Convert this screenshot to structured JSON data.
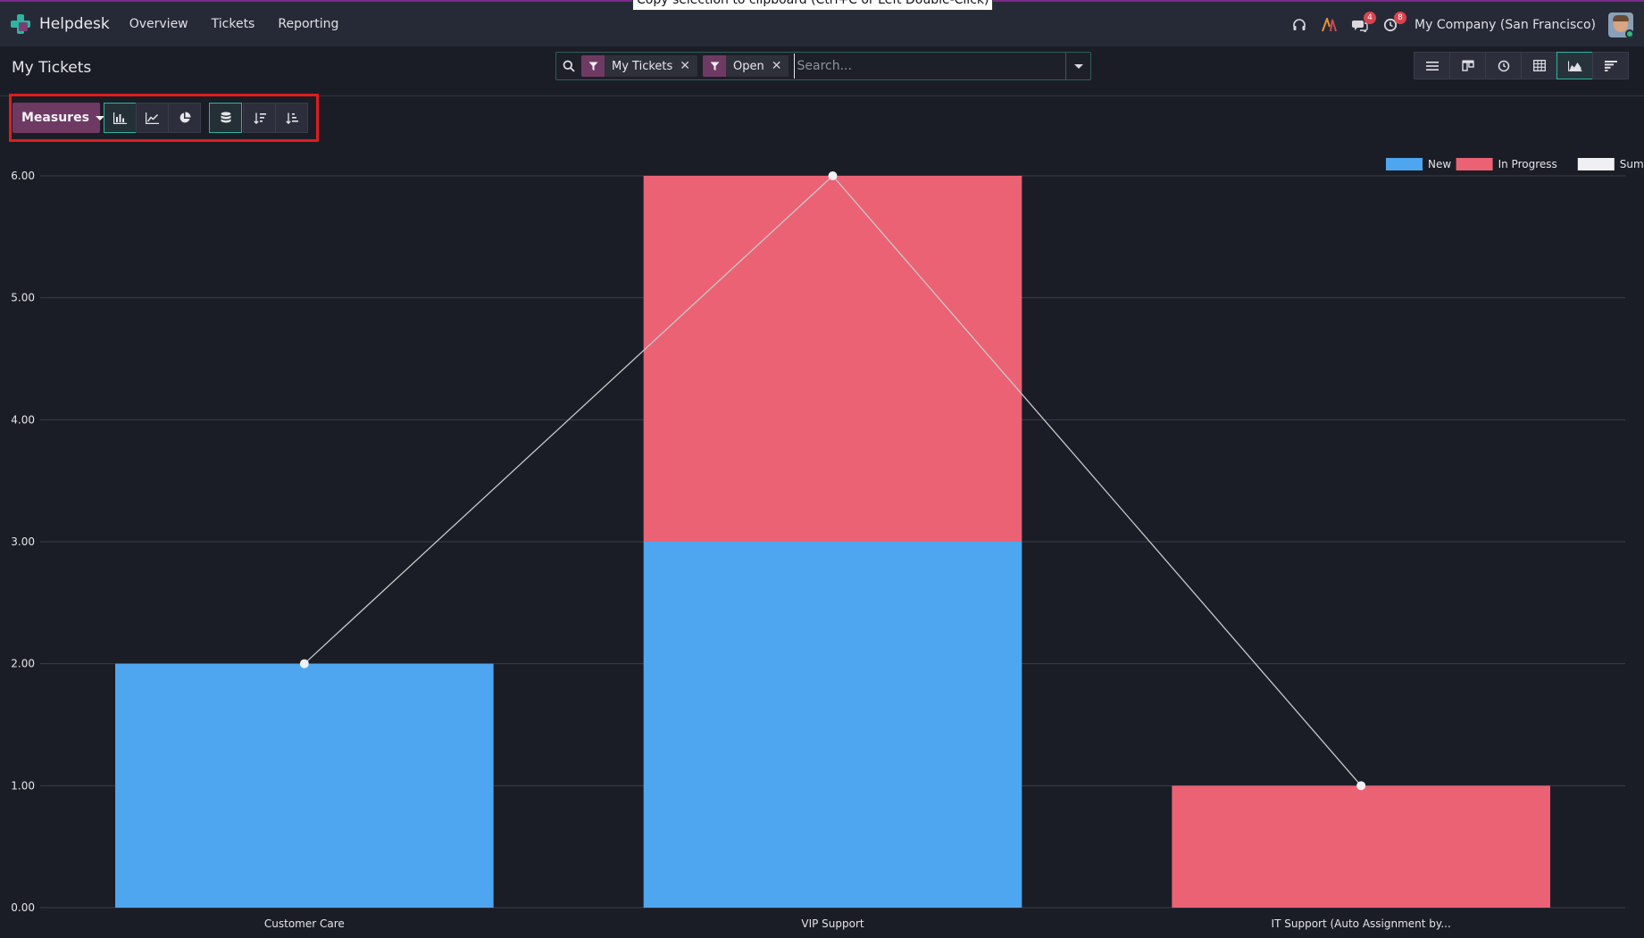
{
  "app": {
    "name": "Helpdesk",
    "menu": [
      "Overview",
      "Tickets",
      "Reporting"
    ]
  },
  "tooltip": "Copy selection to clipboard (Ctrl+C or Left Double-Click)",
  "systray": {
    "discuss_badge": "4",
    "activity_badge": "8",
    "company": "My Company (San Francisco)"
  },
  "control_panel": {
    "title": "My Tickets",
    "facets": [
      {
        "label": "My Tickets",
        "icon": "filter-icon"
      },
      {
        "label": "Open",
        "icon": "filter-icon"
      }
    ],
    "search_placeholder": "Search...",
    "views": [
      "list",
      "kanban",
      "activity",
      "pivot",
      "graph",
      "cohort"
    ],
    "active_view": "graph"
  },
  "graph_toolbar": {
    "measures_label": "Measures",
    "chart_types": [
      "bar-chart-icon",
      "line-chart-icon",
      "pie-chart-icon"
    ],
    "active_chart_type": "bar",
    "stacked": true,
    "sort_buttons": [
      "sort-descending-icon",
      "sort-ascending-icon"
    ]
  },
  "colors": {
    "new": "#4ea6f0",
    "in_progress": "#eb6275",
    "sum": "#f0f0f2",
    "accent": "#2bb5a0",
    "brand": "#6e3a63",
    "highlight_box": "#e01c1c"
  },
  "chart_data": {
    "type": "bar",
    "stacked": true,
    "categories": [
      "Customer Care",
      "VIP Support",
      "IT Support (Auto Assignment by..."
    ],
    "series": [
      {
        "name": "New",
        "values": [
          2,
          3,
          0
        ]
      },
      {
        "name": "In Progress",
        "values": [
          0,
          3,
          1
        ]
      },
      {
        "name": "Sum",
        "type": "line",
        "values": [
          2,
          6,
          1
        ]
      }
    ],
    "ylim": [
      0,
      6
    ],
    "yticks": [
      "0.00",
      "1.00",
      "2.00",
      "3.00",
      "4.00",
      "5.00",
      "6.00"
    ],
    "grid": true,
    "legend_position": "top-right",
    "xlabel": "",
    "ylabel": ""
  }
}
